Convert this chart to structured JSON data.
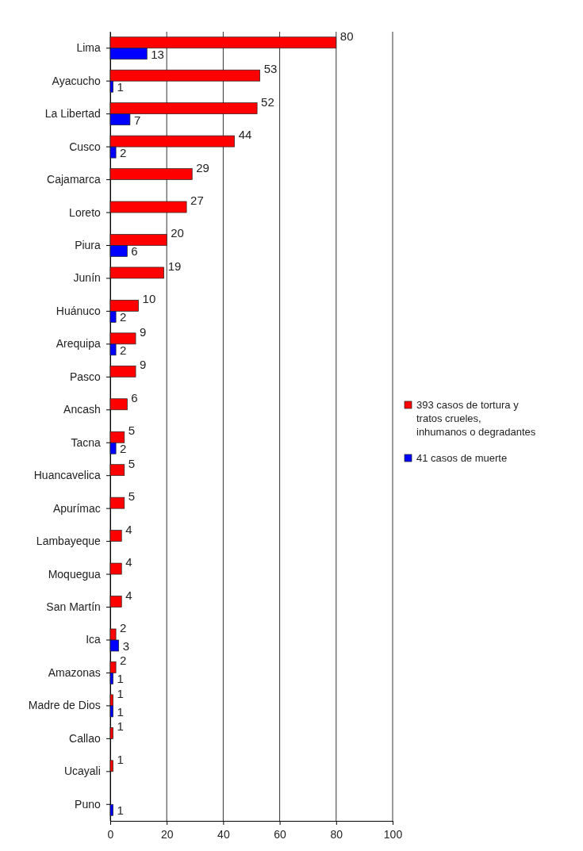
{
  "chart_data": {
    "type": "bar",
    "orientation": "horizontal",
    "categories": [
      "Lima",
      "Ayacucho",
      "La Libertad",
      "Cusco",
      "Cajamarca",
      "Loreto",
      "Piura",
      "Junín",
      "Huánuco",
      "Arequipa",
      "Pasco",
      "Ancash",
      "Tacna",
      "Huancavelica",
      "Apurímac",
      "Lambayeque",
      "Moquegua",
      "San Martín",
      "Ica",
      "Amazonas",
      "Madre de Dios",
      "Callao",
      "Ucayali",
      "Puno"
    ],
    "series": [
      {
        "name": "393 casos de tortura y tratos crueles, inhumanos o degradantes",
        "color": "#ff0000",
        "values": [
          80,
          53,
          52,
          44,
          29,
          27,
          20,
          19,
          10,
          9,
          9,
          6,
          5,
          5,
          5,
          4,
          4,
          4,
          2,
          2,
          1,
          1,
          1,
          null
        ]
      },
      {
        "name": "41 casos de muerte",
        "color": "#0000ff",
        "values": [
          13,
          1,
          7,
          2,
          null,
          null,
          6,
          null,
          2,
          2,
          null,
          null,
          2,
          null,
          null,
          null,
          null,
          null,
          3,
          1,
          1,
          null,
          null,
          1
        ]
      }
    ],
    "xlim": [
      0,
      100
    ],
    "xticks": [
      0,
      20,
      40,
      60,
      80,
      100
    ],
    "grid": "x",
    "legend": "right",
    "data_labels": true
  }
}
